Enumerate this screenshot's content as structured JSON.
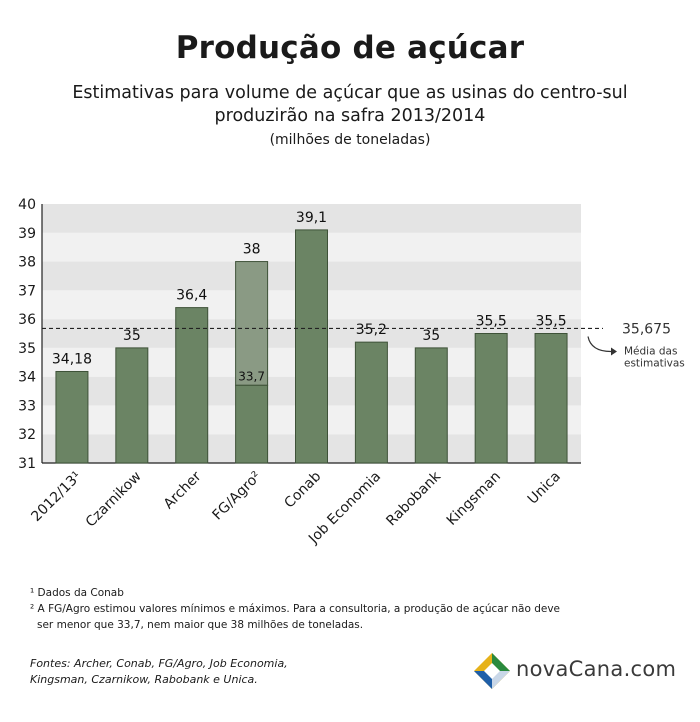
{
  "title": "Produção de açúcar",
  "subtitle": "Estimativas para volume de açúcar que as usinas do centro-sul produzirão na safra 2013/2014",
  "units": "(milhões de toneladas)",
  "chart_data": {
    "type": "bar",
    "categories": [
      "2012/13¹",
      "Czarnikow",
      "Archer",
      "FG/Agro²",
      "Conab",
      "Job Economia",
      "Rabobank",
      "Kingsman",
      "Unica"
    ],
    "values": [
      34.18,
      35,
      36.4,
      38,
      39.1,
      35.2,
      35,
      35.5,
      35.5
    ],
    "value_labels": [
      "34,18",
      "35",
      "36,4",
      "38",
      "39,1",
      "35,2",
      "35",
      "35,5",
      "35,5"
    ],
    "range_bar": {
      "category": "FG/Agro²",
      "min": 33.7,
      "min_label": "33,7",
      "max": 38,
      "max_label": "38"
    },
    "ylim": [
      31,
      40
    ],
    "yticks": [
      "31",
      "32",
      "33",
      "34",
      "35",
      "36",
      "37",
      "38",
      "39",
      "40"
    ],
    "reference_line": {
      "value": 35.675,
      "label": "35,675",
      "note_line1": "Média das",
      "note_line2": "estimativas"
    },
    "grid": true,
    "colors": {
      "bar": "#6b8464",
      "bar_stroke": "#3e5238",
      "range_upper": "#8a9a84",
      "band_light": "#f1f1f1",
      "band_dark": "#e4e4e4"
    }
  },
  "footnotes": {
    "note1": "¹ Dados da Conab",
    "note2": "² A FG/Agro estimou valores mínimos e máximos. Para a consultoria, a produção de açúcar não deve ser menor que 33,7, nem maior que 38 milhões de toneladas."
  },
  "sources": "Fontes:  Archer, Conab, FG/Agro, Job Economia, Kingsman, Czarnikow, Rabobank e Unica.",
  "logo": {
    "text_part1": "nova",
    "text_part2": "Cana",
    "text_part3": ".com"
  }
}
